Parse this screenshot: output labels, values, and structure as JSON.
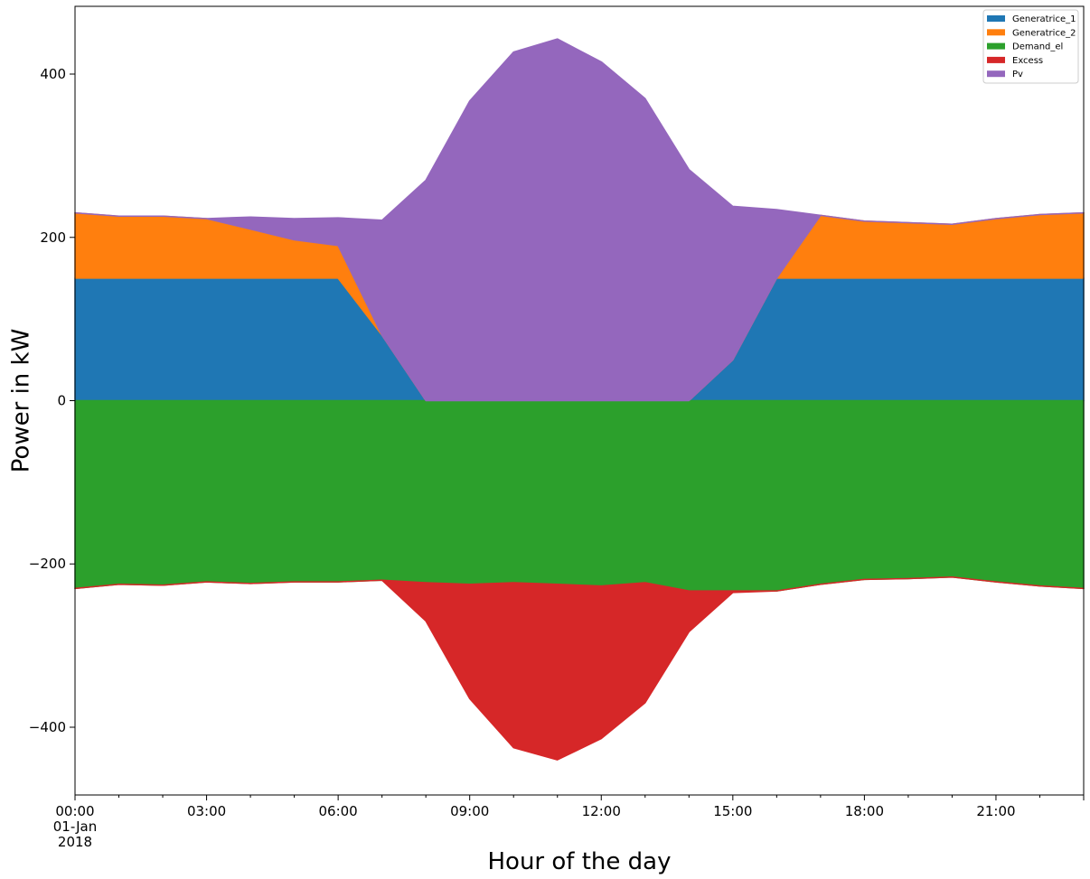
{
  "chart_data": {
    "type": "area",
    "title": "",
    "xlabel": "Hour of the day",
    "ylabel": "Power in kW",
    "x": [
      0,
      1,
      2,
      3,
      4,
      5,
      6,
      7,
      8,
      9,
      10,
      11,
      12,
      13,
      14,
      15,
      16,
      17,
      18,
      19,
      20,
      21,
      22,
      23
    ],
    "xlim": [
      0,
      23
    ],
    "ylim": [
      -483,
      483
    ],
    "yticks": [
      -400,
      -200,
      0,
      200,
      400
    ],
    "ytick_labels": [
      "−400",
      "−200",
      "0",
      "200",
      "400"
    ],
    "xticks": [
      {
        "x": 0,
        "lines": [
          "00:00",
          "01-Jan",
          "2018"
        ]
      },
      {
        "x": 3,
        "lines": [
          "03:00"
        ]
      },
      {
        "x": 6,
        "lines": [
          "06:00"
        ]
      },
      {
        "x": 9,
        "lines": [
          "09:00"
        ]
      },
      {
        "x": 12,
        "lines": [
          "12:00"
        ]
      },
      {
        "x": 15,
        "lines": [
          "15:00"
        ]
      },
      {
        "x": 18,
        "lines": [
          "18:00"
        ]
      },
      {
        "x": 21,
        "lines": [
          "21:00"
        ]
      }
    ],
    "grid": false,
    "legend_position": "top-right",
    "series": [
      {
        "name": "Generatrice_1",
        "color": "#1f77b4",
        "stack": "positive",
        "values": [
          150,
          150,
          150,
          150,
          150,
          150,
          150,
          80,
          0,
          0,
          0,
          0,
          0,
          0,
          0,
          50,
          150,
          150,
          150,
          150,
          150,
          150,
          150,
          150
        ]
      },
      {
        "name": "Generatrice_2",
        "color": "#ff7f0e",
        "stack": "positive",
        "values": [
          80,
          76,
          76,
          73,
          60,
          47,
          40,
          0,
          0,
          0,
          0,
          0,
          0,
          0,
          0,
          0,
          0,
          77,
          70,
          68,
          66,
          73,
          78,
          80
        ]
      },
      {
        "name": "Demand_el",
        "color": "#2ca02c",
        "stack": "negative",
        "values": [
          -230,
          -225,
          -226,
          -222,
          -224,
          -222,
          -222,
          -220,
          -223,
          -225,
          -223,
          -225,
          -227,
          -223,
          -233,
          -233,
          -233,
          -225,
          -219,
          -218,
          -216,
          -222,
          -227,
          -230
        ]
      },
      {
        "name": "Excess",
        "color": "#d62728",
        "stack": "negative",
        "values": [
          0,
          0,
          0,
          0,
          0,
          0,
          0,
          0,
          -47,
          -140,
          -202,
          -215,
          -187,
          -147,
          -50,
          -2,
          0,
          0,
          0,
          0,
          0,
          0,
          0,
          0
        ]
      },
      {
        "name": "Pv",
        "color": "#9467bd",
        "stack": "positive",
        "values": [
          0,
          0,
          0,
          0,
          15,
          26,
          34,
          141,
          270,
          367,
          427,
          443,
          415,
          370,
          283,
          188,
          84,
          0,
          0,
          0,
          0,
          0,
          0,
          0
        ]
      }
    ]
  }
}
